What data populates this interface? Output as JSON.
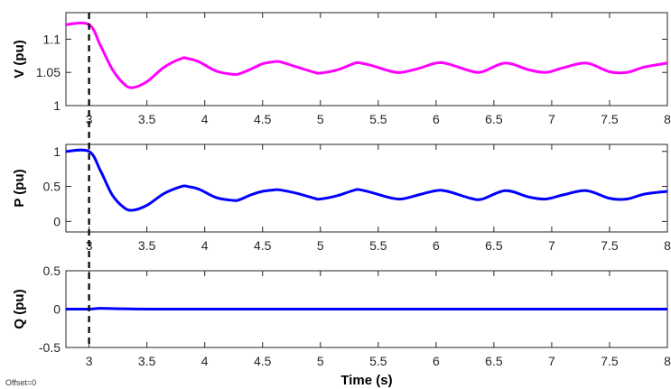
{
  "chart_data": [
    {
      "type": "line",
      "ylabel": "V (pu)",
      "xlim": [
        2.8,
        8
      ],
      "ylim": [
        1,
        1.14
      ],
      "xticks": [
        "3",
        "3.5",
        "4",
        "4.5",
        "5",
        "5.5",
        "6",
        "6.5",
        "7",
        "7.5",
        "8"
      ],
      "yticks": [
        "1",
        "1.05",
        "1.1"
      ],
      "grid": false,
      "series": [
        {
          "color": "#ff00ff",
          "x": [
            2.8,
            3.0,
            3.1,
            3.2,
            3.3,
            3.375,
            3.5,
            3.65,
            3.8,
            3.85,
            3.95,
            4.1,
            4.25,
            4.3,
            4.4,
            4.5,
            4.6,
            4.65,
            4.8,
            4.95,
            5.0,
            5.15,
            5.3,
            5.35,
            5.45,
            5.6,
            5.7,
            5.85,
            6.0,
            6.1,
            6.3,
            6.4,
            6.6,
            6.8,
            6.95,
            7.1,
            7.3,
            7.5,
            7.65,
            7.8,
            8.0
          ],
          "y": [
            1.122,
            1.122,
            1.09,
            1.055,
            1.033,
            1.027,
            1.036,
            1.058,
            1.071,
            1.071,
            1.066,
            1.052,
            1.047,
            1.048,
            1.055,
            1.063,
            1.066,
            1.066,
            1.058,
            1.05,
            1.049,
            1.054,
            1.064,
            1.064,
            1.06,
            1.052,
            1.05,
            1.056,
            1.064,
            1.063,
            1.052,
            1.051,
            1.064,
            1.054,
            1.05,
            1.057,
            1.064,
            1.051,
            1.05,
            1.058,
            1.064
          ]
        }
      ]
    },
    {
      "type": "line",
      "ylabel": "P (pu)",
      "xlim": [
        2.8,
        8
      ],
      "ylim": [
        -0.15,
        1.1
      ],
      "xticks": [
        "3",
        "3.5",
        "4",
        "4.5",
        "5",
        "5.5",
        "6",
        "6.5",
        "7",
        "7.5",
        "8"
      ],
      "yticks": [
        "0",
        "0.5",
        "1"
      ],
      "grid": false,
      "series": [
        {
          "color": "#0000ff",
          "x": [
            2.8,
            3.0,
            3.1,
            3.2,
            3.3,
            3.375,
            3.5,
            3.65,
            3.8,
            3.85,
            3.95,
            4.1,
            4.25,
            4.3,
            4.4,
            4.5,
            4.6,
            4.65,
            4.8,
            4.95,
            5.0,
            5.15,
            5.3,
            5.35,
            5.45,
            5.6,
            5.7,
            5.85,
            6.0,
            6.1,
            6.3,
            6.4,
            6.6,
            6.8,
            6.95,
            7.1,
            7.3,
            7.5,
            7.65,
            7.8,
            8.0
          ],
          "y": [
            1.0,
            1.0,
            0.72,
            0.38,
            0.2,
            0.16,
            0.23,
            0.4,
            0.5,
            0.5,
            0.46,
            0.34,
            0.3,
            0.31,
            0.38,
            0.43,
            0.45,
            0.45,
            0.4,
            0.33,
            0.32,
            0.37,
            0.45,
            0.45,
            0.41,
            0.34,
            0.32,
            0.38,
            0.44,
            0.43,
            0.33,
            0.32,
            0.44,
            0.35,
            0.32,
            0.38,
            0.44,
            0.33,
            0.32,
            0.39,
            0.43
          ]
        }
      ]
    },
    {
      "type": "line",
      "ylabel": "Q (pu)",
      "xlabel": "Time (s)",
      "xlim": [
        2.8,
        8
      ],
      "ylim": [
        -0.5,
        0.5
      ],
      "xticks": [
        "3",
        "3.5",
        "4",
        "4.5",
        "5",
        "5.5",
        "6",
        "6.5",
        "7",
        "7.5",
        "8"
      ],
      "yticks": [
        "-0.5",
        "0",
        "0.5"
      ],
      "grid": false,
      "series": [
        {
          "color": "#0000ff",
          "x": [
            2.8,
            3.0,
            3.1,
            3.3,
            4.0,
            8.0
          ],
          "y": [
            0.0,
            0.0,
            0.01,
            0.005,
            0.0,
            0.0
          ]
        }
      ]
    }
  ],
  "cursor": {
    "x": 3.0
  },
  "offset_label": "Offset=0"
}
